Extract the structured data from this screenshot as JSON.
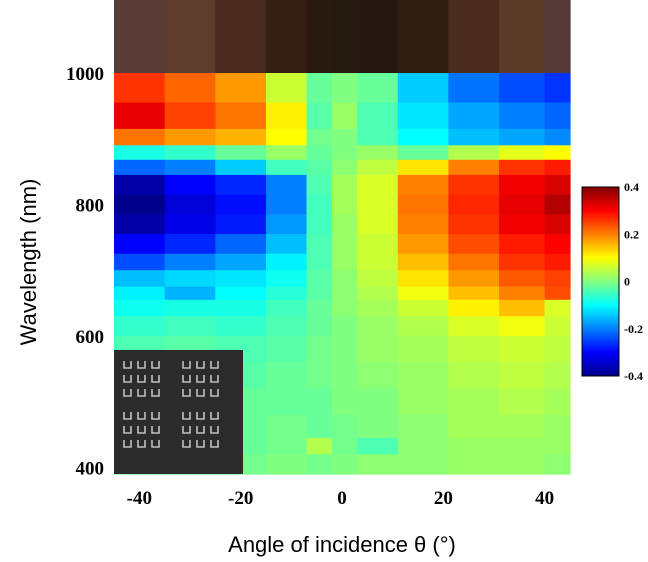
{
  "chart_data": {
    "type": "heatmap",
    "xlabel": "Angle of incidence θ (°)",
    "ylabel": "Wavelength (nm)",
    "x_ticks": [
      "-40",
      "-20",
      "0",
      "20",
      "40"
    ],
    "x_tick_values": [
      -40,
      -20,
      0,
      20,
      40
    ],
    "y_ticks": [
      "1000",
      "800",
      "600",
      "400"
    ],
    "y_tick_values": [
      1000,
      800,
      600,
      400
    ],
    "xlim": [
      -45,
      45
    ],
    "ylim": [
      390,
      1000
    ],
    "x_columns": [
      -40,
      -30,
      -20,
      -10,
      -4,
      0,
      6,
      16,
      26,
      36,
      44
    ],
    "colorbar": {
      "min": -0.4,
      "max": 0.4,
      "ticks": [
        "0.4",
        "0.2",
        "0",
        "-0.2",
        "-0.4"
      ],
      "tick_values": [
        0.4,
        0.2,
        0,
        -0.2,
        -0.4
      ],
      "colormap": "jet"
    },
    "top_strip_colors": [
      "#5a3c36",
      "#5e3d2c",
      "#4a2a1e",
      "#331f14",
      "#291a0f",
      "#251a10",
      "#241810",
      "#311e12",
      "#4a2c1c",
      "#5c3c28",
      "#553838"
    ],
    "rows": [
      {
        "y": [
          1000,
          955
        ],
        "v": [
          0.26,
          0.22,
          0.18,
          0.06,
          -0.02,
          0.0,
          -0.02,
          -0.14,
          -0.21,
          -0.24,
          -0.26
        ]
      },
      {
        "y": [
          955,
          915
        ],
        "v": [
          0.32,
          0.25,
          0.21,
          0.11,
          -0.03,
          0.02,
          -0.04,
          -0.12,
          -0.17,
          -0.2,
          -0.22
        ]
      },
      {
        "y": [
          915,
          890
        ],
        "v": [
          0.21,
          0.18,
          0.16,
          0.1,
          -0.01,
          0.0,
          -0.04,
          -0.1,
          -0.15,
          -0.17,
          -0.19
        ]
      },
      {
        "y": [
          890,
          868
        ],
        "v": [
          -0.08,
          -0.06,
          -0.02,
          0.02,
          -0.02,
          0.0,
          0.02,
          -0.02,
          0.04,
          0.08,
          0.1
        ]
      },
      {
        "y": [
          868,
          845
        ],
        "v": [
          -0.22,
          -0.2,
          -0.14,
          -0.05,
          -0.03,
          0.01,
          0.05,
          0.12,
          0.2,
          0.26,
          0.28
        ]
      },
      {
        "y": [
          845,
          815
        ],
        "v": [
          -0.37,
          -0.3,
          -0.27,
          -0.2,
          -0.04,
          0.03,
          0.07,
          0.2,
          0.26,
          0.31,
          0.33
        ]
      },
      {
        "y": [
          815,
          785
        ],
        "v": [
          -0.39,
          -0.33,
          -0.29,
          -0.2,
          -0.05,
          0.03,
          0.07,
          0.21,
          0.27,
          0.32,
          0.36
        ]
      },
      {
        "y": [
          785,
          755
        ],
        "v": [
          -0.37,
          -0.32,
          -0.28,
          -0.18,
          -0.05,
          0.02,
          0.07,
          0.2,
          0.26,
          0.31,
          0.33
        ]
      },
      {
        "y": [
          755,
          725
        ],
        "v": [
          -0.3,
          -0.27,
          -0.22,
          -0.15,
          -0.04,
          0.02,
          0.06,
          0.18,
          0.24,
          0.28,
          0.3
        ]
      },
      {
        "y": [
          725,
          700
        ],
        "v": [
          -0.24,
          -0.2,
          -0.17,
          -0.11,
          -0.04,
          0.02,
          0.06,
          0.15,
          0.21,
          0.26,
          0.28
        ]
      },
      {
        "y": [
          700,
          675
        ],
        "v": [
          -0.15,
          -0.13,
          -0.12,
          -0.09,
          -0.03,
          0.01,
          0.05,
          0.12,
          0.18,
          0.23,
          0.25
        ]
      },
      {
        "y": [
          675,
          655
        ],
        "v": [
          -0.11,
          -0.16,
          -0.1,
          -0.07,
          -0.03,
          0.01,
          0.04,
          0.09,
          0.15,
          0.2,
          0.24
        ]
      },
      {
        "y": [
          655,
          630
        ],
        "v": [
          -0.09,
          -0.08,
          -0.08,
          -0.05,
          -0.02,
          0.01,
          0.03,
          0.06,
          0.11,
          0.15,
          0.07
        ]
      },
      {
        "y": [
          630,
          600
        ],
        "v": [
          -0.06,
          -0.05,
          -0.06,
          -0.04,
          -0.02,
          0.0,
          0.02,
          0.04,
          0.07,
          0.09,
          0.06
        ]
      },
      {
        "y": [
          600,
          560
        ],
        "v": [
          -0.04,
          -0.03,
          -0.04,
          -0.03,
          -0.01,
          0.0,
          0.02,
          0.03,
          0.05,
          0.06,
          0.05
        ]
      },
      {
        "y": [
          560,
          520
        ],
        "v": [
          -0.03,
          -0.02,
          -0.03,
          -0.02,
          -0.01,
          0.0,
          0.01,
          0.02,
          0.04,
          0.05,
          0.04
        ]
      },
      {
        "y": [
          520,
          480
        ],
        "v": [
          -0.03,
          -0.02,
          -0.02,
          -0.02,
          -0.02,
          0.0,
          0.0,
          0.02,
          0.03,
          0.04,
          0.03
        ]
      },
      {
        "y": [
          480,
          445
        ],
        "v": [
          -0.02,
          -0.02,
          -0.02,
          -0.01,
          -0.02,
          -0.01,
          0.0,
          0.01,
          0.03,
          0.03,
          0.02
        ]
      },
      {
        "y": [
          445,
          420
        ],
        "v": [
          -0.02,
          -0.02,
          -0.02,
          -0.01,
          0.04,
          -0.01,
          -0.04,
          0.01,
          0.02,
          0.02,
          0.02
        ]
      },
      {
        "y": [
          420,
          390
        ],
        "v": [
          -0.01,
          -0.01,
          -0.01,
          0.0,
          -0.01,
          0.0,
          0.01,
          0.01,
          0.02,
          0.02,
          0.01
        ]
      }
    ]
  }
}
